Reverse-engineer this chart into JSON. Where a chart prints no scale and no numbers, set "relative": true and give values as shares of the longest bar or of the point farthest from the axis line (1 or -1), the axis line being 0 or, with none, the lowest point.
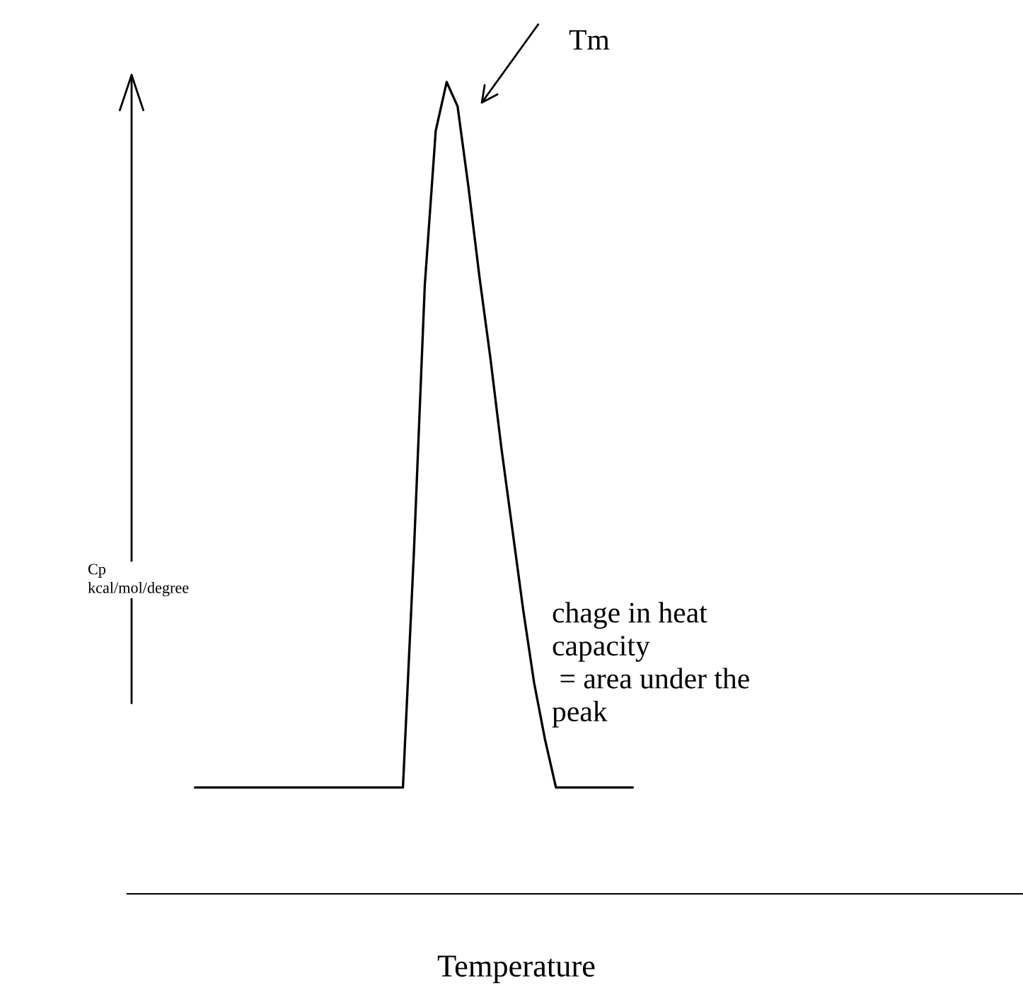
{
  "chart_data": {
    "type": "line",
    "relative": true,
    "xlabel": "Temperature",
    "ylabel": "Cp\nkcal/mol/degree",
    "categories": [
      null,
      null,
      null,
      null,
      null,
      null,
      null,
      null,
      null,
      null,
      null,
      null,
      null,
      null,
      null,
      null,
      null,
      null,
      null,
      null,
      null,
      null,
      null,
      null,
      null,
      null,
      null,
      null,
      null,
      null,
      null,
      null,
      null,
      null,
      null,
      null,
      null,
      null,
      null,
      null,
      null
    ],
    "series": [
      {
        "color": "#000000",
        "values": [
          0.131,
          0.131,
          0.131,
          0.131,
          0.131,
          0.131,
          0.131,
          0.131,
          0.131,
          0.131,
          0.131,
          0.131,
          0.131,
          0.131,
          0.131,
          0.131,
          0.131,
          0.131,
          0.131,
          0.131,
          0.42,
          0.75,
          0.94,
          1,
          0.97,
          0.87,
          0.76,
          0.66,
          0.55,
          0.45,
          0.35,
          0.26,
          0.19,
          0.131,
          0.131,
          0.131,
          0.131,
          0.131,
          0.131,
          0.131,
          0.131
        ]
      }
    ],
    "annotations": [
      "Tm",
      "chage in heat\ncapacity\n = area under the\npeak"
    ],
    "marker": "none",
    "line_style": "solid",
    "grid": false,
    "legend": false
  }
}
